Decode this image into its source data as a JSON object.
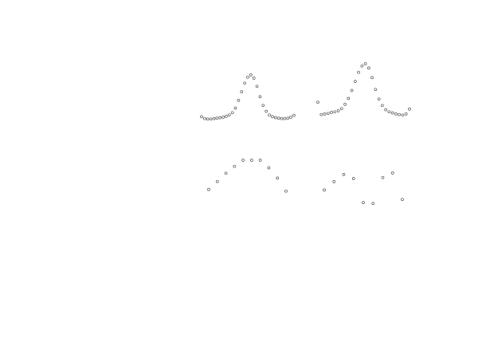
{
  "chart_data": [
    {
      "type": "scatter",
      "title": "",
      "xlabel": "",
      "ylabel": "",
      "x": [
        0,
        1,
        2,
        3,
        4,
        5,
        6,
        7,
        8,
        9,
        10,
        11,
        12,
        13,
        14,
        15,
        16,
        17,
        18,
        19,
        20,
        21,
        22,
        23,
        24,
        25,
        26,
        27,
        28,
        29,
        30
      ],
      "y": [
        0.08,
        0.04,
        0.03,
        0.03,
        0.04,
        0.05,
        0.06,
        0.07,
        0.09,
        0.12,
        0.17,
        0.27,
        0.44,
        0.63,
        0.82,
        0.95,
        1.0,
        0.93,
        0.75,
        0.52,
        0.33,
        0.2,
        0.12,
        0.08,
        0.06,
        0.05,
        0.04,
        0.04,
        0.05,
        0.07,
        0.11
      ],
      "xlim": [
        0,
        30
      ],
      "ylim": [
        0,
        1
      ]
    },
    {
      "type": "scatter",
      "title": "",
      "xlabel": "",
      "ylabel": "",
      "x": [
        0,
        1,
        2,
        3,
        4,
        5,
        6,
        7,
        8,
        9,
        10,
        11,
        12,
        13,
        14,
        15,
        16,
        17,
        18,
        19,
        20,
        21,
        22,
        23,
        24,
        25,
        26,
        27
      ],
      "y": [
        0.28,
        0.05,
        0.06,
        0.07,
        0.09,
        0.1,
        0.12,
        0.16,
        0.24,
        0.35,
        0.5,
        0.67,
        0.84,
        0.96,
        1.0,
        0.92,
        0.74,
        0.52,
        0.34,
        0.22,
        0.14,
        0.1,
        0.08,
        0.06,
        0.05,
        0.04,
        0.06,
        0.15
      ],
      "xlim": [
        0,
        27
      ],
      "ylim": [
        0,
        1
      ]
    },
    {
      "type": "scatter",
      "title": "",
      "xlabel": "",
      "ylabel": "",
      "x": [
        0,
        1,
        2,
        3,
        4,
        5,
        6,
        7,
        8,
        9
      ],
      "y": [
        0.15,
        0.38,
        0.62,
        0.82,
        1.0,
        1.0,
        1.0,
        0.78,
        0.48,
        0.1
      ],
      "xlim": [
        0,
        9
      ],
      "ylim": [
        0,
        1
      ]
    },
    {
      "type": "scatter",
      "title": "",
      "xlabel": "",
      "ylabel": "",
      "x": [
        0,
        1,
        2,
        3,
        4,
        5,
        6,
        7,
        8
      ],
      "y": [
        0.45,
        0.72,
        0.95,
        0.82,
        0.05,
        0.02,
        0.85,
        1.0,
        0.15
      ],
      "xlim": [
        0,
        8
      ],
      "ylim": [
        0,
        1
      ]
    }
  ]
}
